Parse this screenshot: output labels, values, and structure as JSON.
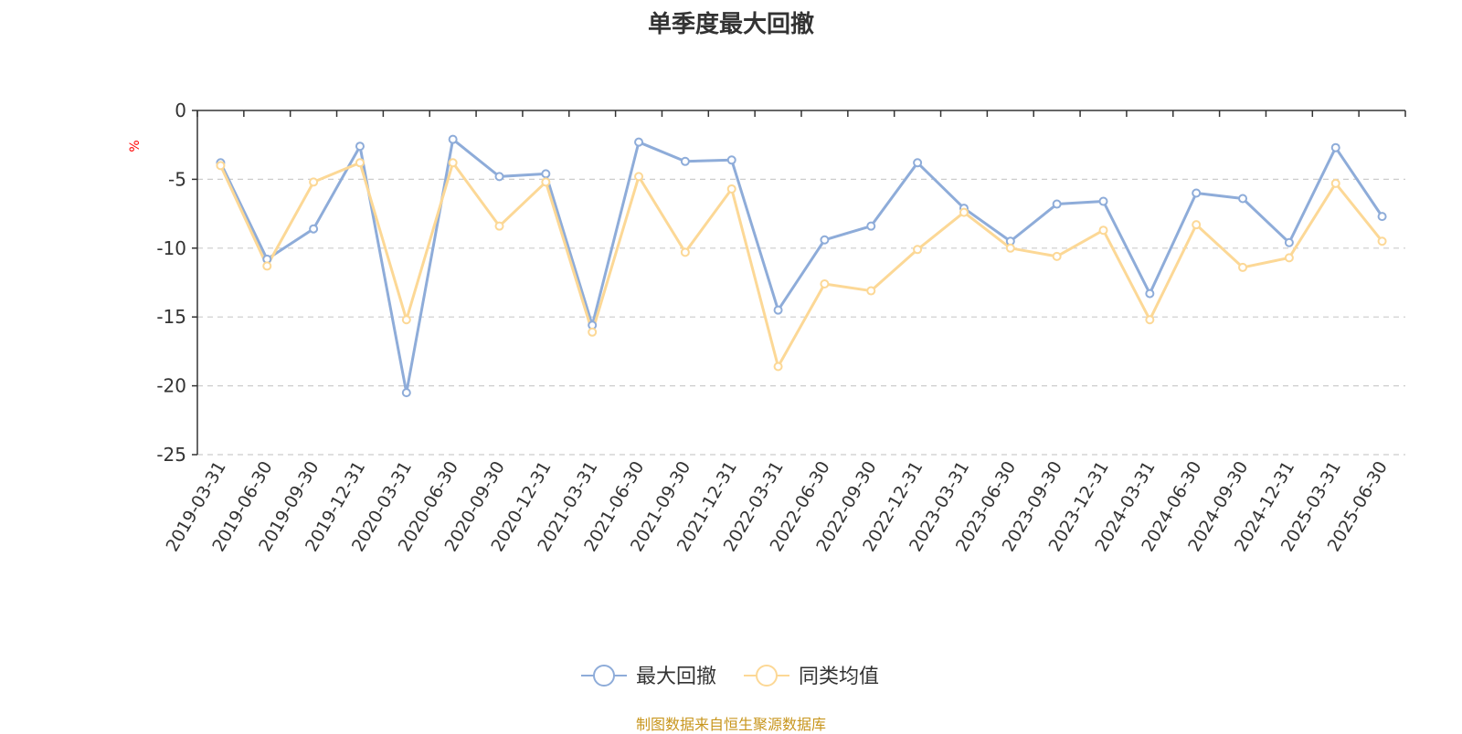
{
  "chart_data": {
    "type": "line",
    "title": "单季度最大回撤",
    "ylabel": "%",
    "ylim": [
      -25,
      0
    ],
    "yticks": [
      0,
      -5,
      -10,
      -15,
      -20,
      -25
    ],
    "ytick_labels": [
      "0",
      "-5",
      "-10",
      "-15",
      "-20",
      "-25"
    ],
    "grid": true,
    "legend_position": "bottom-center",
    "categories": [
      "2019-03-31",
      "2019-06-30",
      "2019-09-30",
      "2019-12-31",
      "2020-03-31",
      "2020-06-30",
      "2020-09-30",
      "2020-12-31",
      "2021-03-31",
      "2021-06-30",
      "2021-09-30",
      "2021-12-31",
      "2022-03-31",
      "2022-06-30",
      "2022-09-30",
      "2022-12-31",
      "2023-03-31",
      "2023-06-30",
      "2023-09-30",
      "2023-12-31",
      "2024-03-31",
      "2024-06-30",
      "2024-09-30",
      "2024-12-31",
      "2025-03-31",
      "2025-06-30"
    ],
    "series": [
      {
        "name": "最大回撤",
        "color": "#8eacd9",
        "values": [
          -3.8,
          -10.8,
          -8.6,
          -2.6,
          -20.5,
          -2.1,
          -4.8,
          -4.6,
          -15.6,
          -2.3,
          -3.7,
          -3.6,
          -14.5,
          -9.4,
          -8.4,
          -3.8,
          -7.1,
          -9.5,
          -6.8,
          -6.6,
          -13.3,
          -6.0,
          -6.4,
          -9.6,
          -2.7,
          -7.7
        ]
      },
      {
        "name": "同类均值",
        "color": "#fcd896",
        "values": [
          -4.0,
          -11.3,
          -5.2,
          -3.8,
          -15.2,
          -3.8,
          -8.4,
          -5.2,
          -16.1,
          -4.8,
          -10.3,
          -5.7,
          -18.6,
          -12.6,
          -13.1,
          -10.1,
          -7.4,
          -10.0,
          -10.6,
          -8.7,
          -15.2,
          -8.3,
          -11.4,
          -10.7,
          -5.3,
          -9.5
        ]
      }
    ]
  },
  "footer": {
    "source": "制图数据来自恒生聚源数据库"
  }
}
